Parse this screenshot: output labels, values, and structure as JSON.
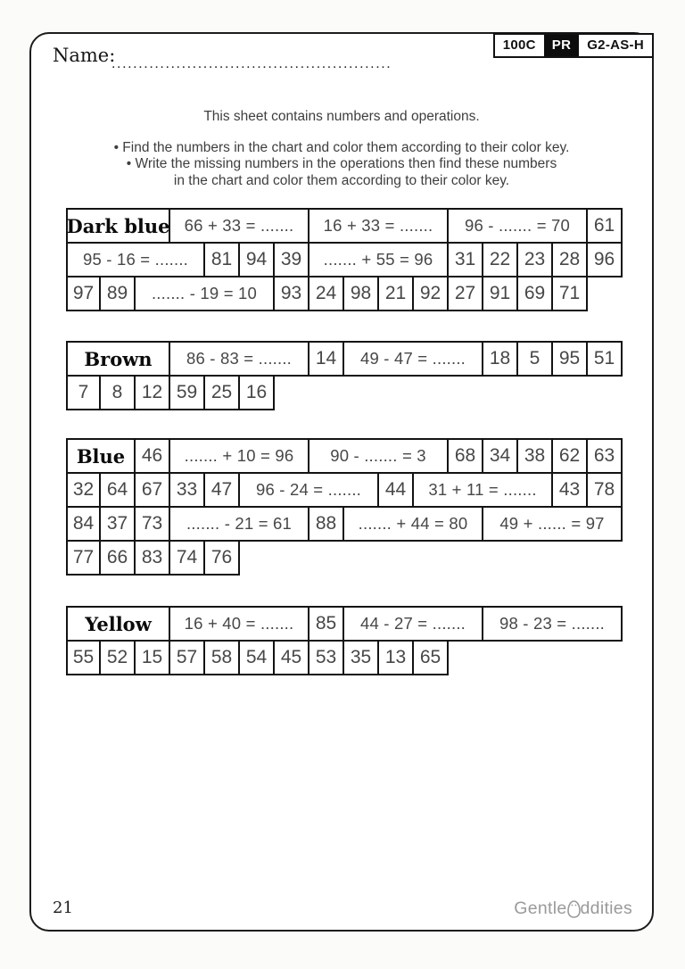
{
  "header": {
    "name_label": "Name:",
    "name_dots": "....................................................",
    "badges": [
      "100C",
      "PR",
      "G2-AS-H"
    ]
  },
  "instructions": {
    "title": "This sheet contains numbers and operations.",
    "lines": [
      "• Find the numbers in the chart and color them according to their color key.",
      "• Write the missing numbers in the operations then find these numbers",
      "in the chart and color them according to their color key."
    ]
  },
  "tables": [
    {
      "color_key": "Dark blue",
      "rows": [
        {
          "cells": [
            {
              "text": "Dark blue",
              "span": 3,
              "type": "label"
            },
            {
              "text": "66 + 33 = .......",
              "span": 4,
              "type": "op"
            },
            {
              "text": "16 + 33 = .......",
              "span": 4,
              "type": "op"
            },
            {
              "text": "96 - ....... = 70",
              "span": 4,
              "type": "op"
            },
            {
              "text": "61",
              "span": 1,
              "type": "num"
            }
          ]
        },
        {
          "cells": [
            {
              "text": "95 - 16 = .......",
              "span": 4,
              "type": "op"
            },
            {
              "text": "81",
              "span": 1,
              "type": "num"
            },
            {
              "text": "94",
              "span": 1,
              "type": "num"
            },
            {
              "text": "39",
              "span": 1,
              "type": "num"
            },
            {
              "text": "....... + 55 = 96",
              "span": 4,
              "type": "op"
            },
            {
              "text": "31",
              "span": 1,
              "type": "num"
            },
            {
              "text": "22",
              "span": 1,
              "type": "num"
            },
            {
              "text": "23",
              "span": 1,
              "type": "num"
            },
            {
              "text": "28",
              "span": 1,
              "type": "num"
            },
            {
              "text": "96",
              "span": 1,
              "type": "num"
            }
          ]
        },
        {
          "cells": [
            {
              "text": "97",
              "span": 1,
              "type": "num"
            },
            {
              "text": "89",
              "span": 1,
              "type": "num"
            },
            {
              "text": "....... - 19 = 10",
              "span": 4,
              "type": "op"
            },
            {
              "text": "93",
              "span": 1,
              "type": "num"
            },
            {
              "text": "24",
              "span": 1,
              "type": "num"
            },
            {
              "text": "98",
              "span": 1,
              "type": "num"
            },
            {
              "text": "21",
              "span": 1,
              "type": "num"
            },
            {
              "text": "92",
              "span": 1,
              "type": "num"
            },
            {
              "text": "27",
              "span": 1,
              "type": "num"
            },
            {
              "text": "91",
              "span": 1,
              "type": "num"
            },
            {
              "text": "69",
              "span": 1,
              "type": "num"
            },
            {
              "text": "71",
              "span": 1,
              "type": "num"
            }
          ]
        }
      ]
    },
    {
      "color_key": "Brown",
      "rows": [
        {
          "cells": [
            {
              "text": "Brown",
              "span": 3,
              "type": "label"
            },
            {
              "text": "86 - 83 = .......",
              "span": 4,
              "type": "op"
            },
            {
              "text": "14",
              "span": 1,
              "type": "num"
            },
            {
              "text": "49 - 47 = .......",
              "span": 4,
              "type": "op"
            },
            {
              "text": "18",
              "span": 1,
              "type": "num"
            },
            {
              "text": "5",
              "span": 1,
              "type": "num"
            },
            {
              "text": "95",
              "span": 1,
              "type": "num"
            },
            {
              "text": "51",
              "span": 1,
              "type": "num"
            }
          ]
        },
        {
          "cells": [
            {
              "text": "7",
              "span": 1,
              "type": "num"
            },
            {
              "text": "8",
              "span": 1,
              "type": "num"
            },
            {
              "text": "12",
              "span": 1,
              "type": "num"
            },
            {
              "text": "59",
              "span": 1,
              "type": "num"
            },
            {
              "text": "25",
              "span": 1,
              "type": "num"
            },
            {
              "text": "16",
              "span": 1,
              "type": "num"
            }
          ]
        }
      ]
    },
    {
      "color_key": "Blue",
      "rows": [
        {
          "cells": [
            {
              "text": "Blue",
              "span": 2,
              "type": "label"
            },
            {
              "text": "46",
              "span": 1,
              "type": "num"
            },
            {
              "text": "....... + 10 = 96",
              "span": 4,
              "type": "op"
            },
            {
              "text": "90 - ....... = 3",
              "span": 4,
              "type": "op"
            },
            {
              "text": "68",
              "span": 1,
              "type": "num"
            },
            {
              "text": "34",
              "span": 1,
              "type": "num"
            },
            {
              "text": "38",
              "span": 1,
              "type": "num"
            },
            {
              "text": "62",
              "span": 1,
              "type": "num"
            },
            {
              "text": "63",
              "span": 1,
              "type": "num"
            }
          ]
        },
        {
          "cells": [
            {
              "text": "32",
              "span": 1,
              "type": "num"
            },
            {
              "text": "64",
              "span": 1,
              "type": "num"
            },
            {
              "text": "67",
              "span": 1,
              "type": "num"
            },
            {
              "text": "33",
              "span": 1,
              "type": "num"
            },
            {
              "text": "47",
              "span": 1,
              "type": "num"
            },
            {
              "text": "96 - 24 = .......",
              "span": 4,
              "type": "op"
            },
            {
              "text": "44",
              "span": 1,
              "type": "num"
            },
            {
              "text": "31 + 11 = .......",
              "span": 4,
              "type": "op"
            },
            {
              "text": "43",
              "span": 1,
              "type": "num"
            },
            {
              "text": "78",
              "span": 1,
              "type": "num"
            }
          ]
        },
        {
          "cells": [
            {
              "text": "84",
              "span": 1,
              "type": "num"
            },
            {
              "text": "37",
              "span": 1,
              "type": "num"
            },
            {
              "text": "73",
              "span": 1,
              "type": "num"
            },
            {
              "text": "....... - 21 = 61",
              "span": 4,
              "type": "op"
            },
            {
              "text": "88",
              "span": 1,
              "type": "num"
            },
            {
              "text": "....... + 44 = 80",
              "span": 4,
              "type": "op"
            },
            {
              "text": "49 + ...... = 97",
              "span": 4,
              "type": "op"
            }
          ]
        },
        {
          "cells": [
            {
              "text": "77",
              "span": 1,
              "type": "num"
            },
            {
              "text": "66",
              "span": 1,
              "type": "num"
            },
            {
              "text": "83",
              "span": 1,
              "type": "num"
            },
            {
              "text": "74",
              "span": 1,
              "type": "num"
            },
            {
              "text": "76",
              "span": 1,
              "type": "num"
            }
          ]
        }
      ]
    },
    {
      "color_key": "Yellow",
      "rows": [
        {
          "cells": [
            {
              "text": "Yellow",
              "span": 3,
              "type": "label"
            },
            {
              "text": "16 + 40 = .......",
              "span": 4,
              "type": "op"
            },
            {
              "text": "85",
              "span": 1,
              "type": "num"
            },
            {
              "text": "44 - 27 = .......",
              "span": 4,
              "type": "op"
            },
            {
              "text": "98 - 23 = .......",
              "span": 4,
              "type": "op"
            }
          ]
        },
        {
          "cells": [
            {
              "text": "55",
              "span": 1,
              "type": "num"
            },
            {
              "text": "52",
              "span": 1,
              "type": "num"
            },
            {
              "text": "15",
              "span": 1,
              "type": "num"
            },
            {
              "text": "57",
              "span": 1,
              "type": "num"
            },
            {
              "text": "58",
              "span": 1,
              "type": "num"
            },
            {
              "text": "54",
              "span": 1,
              "type": "num"
            },
            {
              "text": "45",
              "span": 1,
              "type": "num"
            },
            {
              "text": "53",
              "span": 1,
              "type": "num"
            },
            {
              "text": "35",
              "span": 1,
              "type": "num"
            },
            {
              "text": "13",
              "span": 1,
              "type": "num"
            },
            {
              "text": "65",
              "span": 1,
              "type": "num"
            }
          ]
        }
      ]
    }
  ],
  "footer": {
    "page_number": "21",
    "logo_part1": "Gentle",
    "logo_part2": "ddities"
  }
}
